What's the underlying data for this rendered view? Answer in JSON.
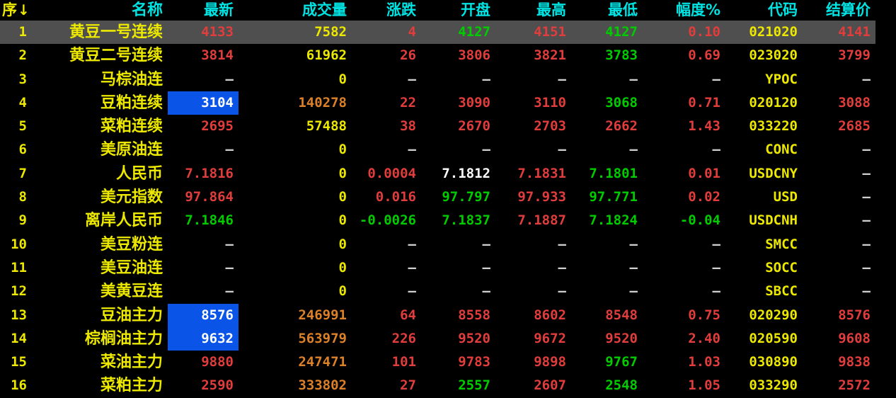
{
  "colors": {
    "bg": "#000000",
    "header-cyan": "#00e3e3",
    "yellow": "#ece800",
    "red": "#e23d3d",
    "green": "#00cc00",
    "white": "#ffffff",
    "orange": "#dd8128",
    "gray-dash": "#cfcfcf",
    "selected-bg": "#4f4f4f",
    "highlight-blue": "#0a55e8"
  },
  "color_codes": {
    "r": "red (up / above settlement)",
    "g": "green (down / below settlement)",
    "y": "yellow (neutral / volume / code)",
    "w": "white (unchanged)",
    "d": "gray dash (no data)",
    "o": "orange (large volume)",
    "hl": "white on blue (highlighted latest price)"
  },
  "table": {
    "sort_arrow": "↓",
    "selected_row": 0,
    "columns": [
      {
        "key": "seq",
        "label": "序"
      },
      {
        "key": "name",
        "label": "名称"
      },
      {
        "key": "latest",
        "label": "最新"
      },
      {
        "key": "volume",
        "label": "成交量"
      },
      {
        "key": "change",
        "label": "涨跌"
      },
      {
        "key": "open",
        "label": "开盘"
      },
      {
        "key": "high",
        "label": "最高"
      },
      {
        "key": "low",
        "label": "最低"
      },
      {
        "key": "range",
        "label": "幅度%"
      },
      {
        "key": "code",
        "label": "代码"
      },
      {
        "key": "settle",
        "label": "结算价"
      }
    ],
    "rows": [
      {
        "cells": [
          {
            "t": "1",
            "c": "y"
          },
          {
            "t": "黄豆一号连续",
            "c": "y"
          },
          {
            "t": "4133",
            "c": "r"
          },
          {
            "t": "7582",
            "c": "y"
          },
          {
            "t": "4",
            "c": "r"
          },
          {
            "t": "4127",
            "c": "g"
          },
          {
            "t": "4151",
            "c": "r"
          },
          {
            "t": "4127",
            "c": "g"
          },
          {
            "t": "0.10",
            "c": "r"
          },
          {
            "t": "021020",
            "c": "y"
          },
          {
            "t": "4141",
            "c": "r"
          }
        ]
      },
      {
        "cells": [
          {
            "t": "2",
            "c": "y"
          },
          {
            "t": "黄豆二号连续",
            "c": "y"
          },
          {
            "t": "3814",
            "c": "r"
          },
          {
            "t": "61962",
            "c": "y"
          },
          {
            "t": "26",
            "c": "r"
          },
          {
            "t": "3806",
            "c": "r"
          },
          {
            "t": "3821",
            "c": "r"
          },
          {
            "t": "3783",
            "c": "g"
          },
          {
            "t": "0.69",
            "c": "r"
          },
          {
            "t": "023020",
            "c": "y"
          },
          {
            "t": "3799",
            "c": "r"
          }
        ]
      },
      {
        "cells": [
          {
            "t": "3",
            "c": "y"
          },
          {
            "t": "马棕油连",
            "c": "y"
          },
          {
            "t": "—",
            "c": "d"
          },
          {
            "t": "0",
            "c": "y"
          },
          {
            "t": "—",
            "c": "d"
          },
          {
            "t": "—",
            "c": "d"
          },
          {
            "t": "—",
            "c": "d"
          },
          {
            "t": "—",
            "c": "d"
          },
          {
            "t": "—",
            "c": "d"
          },
          {
            "t": "YPOC",
            "c": "y"
          },
          {
            "t": "—",
            "c": "d"
          }
        ]
      },
      {
        "cells": [
          {
            "t": "4",
            "c": "y"
          },
          {
            "t": "豆粕连续",
            "c": "y"
          },
          {
            "t": "3104",
            "c": "hl"
          },
          {
            "t": "140278",
            "c": "o"
          },
          {
            "t": "22",
            "c": "r"
          },
          {
            "t": "3090",
            "c": "r"
          },
          {
            "t": "3110",
            "c": "r"
          },
          {
            "t": "3068",
            "c": "g"
          },
          {
            "t": "0.71",
            "c": "r"
          },
          {
            "t": "020120",
            "c": "y"
          },
          {
            "t": "3088",
            "c": "r"
          }
        ]
      },
      {
        "cells": [
          {
            "t": "5",
            "c": "y"
          },
          {
            "t": "菜粕连续",
            "c": "y"
          },
          {
            "t": "2695",
            "c": "r"
          },
          {
            "t": "57488",
            "c": "y"
          },
          {
            "t": "38",
            "c": "r"
          },
          {
            "t": "2670",
            "c": "r"
          },
          {
            "t": "2703",
            "c": "r"
          },
          {
            "t": "2662",
            "c": "r"
          },
          {
            "t": "1.43",
            "c": "r"
          },
          {
            "t": "033220",
            "c": "y"
          },
          {
            "t": "2685",
            "c": "r"
          }
        ]
      },
      {
        "cells": [
          {
            "t": "6",
            "c": "y"
          },
          {
            "t": "美原油连",
            "c": "y"
          },
          {
            "t": "—",
            "c": "d"
          },
          {
            "t": "0",
            "c": "y"
          },
          {
            "t": "—",
            "c": "d"
          },
          {
            "t": "—",
            "c": "d"
          },
          {
            "t": "—",
            "c": "d"
          },
          {
            "t": "—",
            "c": "d"
          },
          {
            "t": "—",
            "c": "d"
          },
          {
            "t": "CONC",
            "c": "y"
          },
          {
            "t": "—",
            "c": "d"
          }
        ]
      },
      {
        "cells": [
          {
            "t": "7",
            "c": "y"
          },
          {
            "t": "人民币",
            "c": "y"
          },
          {
            "t": "7.1816",
            "c": "r"
          },
          {
            "t": "0",
            "c": "y"
          },
          {
            "t": "0.0004",
            "c": "r"
          },
          {
            "t": "7.1812",
            "c": "w"
          },
          {
            "t": "7.1831",
            "c": "r"
          },
          {
            "t": "7.1801",
            "c": "g"
          },
          {
            "t": "0.01",
            "c": "r"
          },
          {
            "t": "USDCNY",
            "c": "y"
          },
          {
            "t": "—",
            "c": "d"
          }
        ]
      },
      {
        "cells": [
          {
            "t": "8",
            "c": "y"
          },
          {
            "t": "美元指数",
            "c": "y"
          },
          {
            "t": "97.864",
            "c": "r"
          },
          {
            "t": "0",
            "c": "y"
          },
          {
            "t": "0.016",
            "c": "r"
          },
          {
            "t": "97.797",
            "c": "g"
          },
          {
            "t": "97.933",
            "c": "r"
          },
          {
            "t": "97.771",
            "c": "g"
          },
          {
            "t": "0.02",
            "c": "r"
          },
          {
            "t": "USD",
            "c": "y"
          },
          {
            "t": "—",
            "c": "d"
          }
        ]
      },
      {
        "cells": [
          {
            "t": "9",
            "c": "y"
          },
          {
            "t": "离岸人民币",
            "c": "y"
          },
          {
            "t": "7.1846",
            "c": "g"
          },
          {
            "t": "0",
            "c": "y"
          },
          {
            "t": "-0.0026",
            "c": "g"
          },
          {
            "t": "7.1837",
            "c": "g"
          },
          {
            "t": "7.1887",
            "c": "r"
          },
          {
            "t": "7.1824",
            "c": "g"
          },
          {
            "t": "-0.04",
            "c": "g"
          },
          {
            "t": "USDCNH",
            "c": "y"
          },
          {
            "t": "—",
            "c": "d"
          }
        ]
      },
      {
        "cells": [
          {
            "t": "10",
            "c": "y"
          },
          {
            "t": "美豆粉连",
            "c": "y"
          },
          {
            "t": "—",
            "c": "d"
          },
          {
            "t": "0",
            "c": "y"
          },
          {
            "t": "—",
            "c": "d"
          },
          {
            "t": "—",
            "c": "d"
          },
          {
            "t": "—",
            "c": "d"
          },
          {
            "t": "—",
            "c": "d"
          },
          {
            "t": "—",
            "c": "d"
          },
          {
            "t": "SMCC",
            "c": "y"
          },
          {
            "t": "—",
            "c": "d"
          }
        ]
      },
      {
        "cells": [
          {
            "t": "11",
            "c": "y"
          },
          {
            "t": "美豆油连",
            "c": "y"
          },
          {
            "t": "—",
            "c": "d"
          },
          {
            "t": "0",
            "c": "y"
          },
          {
            "t": "—",
            "c": "d"
          },
          {
            "t": "—",
            "c": "d"
          },
          {
            "t": "—",
            "c": "d"
          },
          {
            "t": "—",
            "c": "d"
          },
          {
            "t": "—",
            "c": "d"
          },
          {
            "t": "SOCC",
            "c": "y"
          },
          {
            "t": "—",
            "c": "d"
          }
        ]
      },
      {
        "cells": [
          {
            "t": "12",
            "c": "y"
          },
          {
            "t": "美黄豆连",
            "c": "y"
          },
          {
            "t": "—",
            "c": "d"
          },
          {
            "t": "0",
            "c": "y"
          },
          {
            "t": "—",
            "c": "d"
          },
          {
            "t": "—",
            "c": "d"
          },
          {
            "t": "—",
            "c": "d"
          },
          {
            "t": "—",
            "c": "d"
          },
          {
            "t": "—",
            "c": "d"
          },
          {
            "t": "SBCC",
            "c": "y"
          },
          {
            "t": "—",
            "c": "d"
          }
        ]
      },
      {
        "cells": [
          {
            "t": "13",
            "c": "y"
          },
          {
            "t": "豆油主力",
            "c": "y"
          },
          {
            "t": "8576",
            "c": "hl"
          },
          {
            "t": "246991",
            "c": "o"
          },
          {
            "t": "64",
            "c": "r"
          },
          {
            "t": "8558",
            "c": "r"
          },
          {
            "t": "8602",
            "c": "r"
          },
          {
            "t": "8548",
            "c": "r"
          },
          {
            "t": "0.75",
            "c": "r"
          },
          {
            "t": "020290",
            "c": "y"
          },
          {
            "t": "8576",
            "c": "r"
          }
        ]
      },
      {
        "cells": [
          {
            "t": "14",
            "c": "y"
          },
          {
            "t": "棕榈油主力",
            "c": "y"
          },
          {
            "t": "9632",
            "c": "hl"
          },
          {
            "t": "563979",
            "c": "o"
          },
          {
            "t": "226",
            "c": "r"
          },
          {
            "t": "9520",
            "c": "r"
          },
          {
            "t": "9672",
            "c": "r"
          },
          {
            "t": "9520",
            "c": "r"
          },
          {
            "t": "2.40",
            "c": "r"
          },
          {
            "t": "020590",
            "c": "y"
          },
          {
            "t": "9608",
            "c": "r"
          }
        ]
      },
      {
        "cells": [
          {
            "t": "15",
            "c": "y"
          },
          {
            "t": "菜油主力",
            "c": "y"
          },
          {
            "t": "9880",
            "c": "r"
          },
          {
            "t": "247471",
            "c": "o"
          },
          {
            "t": "101",
            "c": "r"
          },
          {
            "t": "9783",
            "c": "r"
          },
          {
            "t": "9898",
            "c": "r"
          },
          {
            "t": "9767",
            "c": "g"
          },
          {
            "t": "1.03",
            "c": "r"
          },
          {
            "t": "030890",
            "c": "y"
          },
          {
            "t": "9838",
            "c": "r"
          }
        ]
      },
      {
        "cells": [
          {
            "t": "16",
            "c": "y"
          },
          {
            "t": "菜粕主力",
            "c": "y"
          },
          {
            "t": "2590",
            "c": "r"
          },
          {
            "t": "333802",
            "c": "o"
          },
          {
            "t": "27",
            "c": "r"
          },
          {
            "t": "2557",
            "c": "g"
          },
          {
            "t": "2607",
            "c": "r"
          },
          {
            "t": "2548",
            "c": "g"
          },
          {
            "t": "1.05",
            "c": "r"
          },
          {
            "t": "033290",
            "c": "y"
          },
          {
            "t": "2572",
            "c": "r"
          }
        ]
      }
    ]
  }
}
